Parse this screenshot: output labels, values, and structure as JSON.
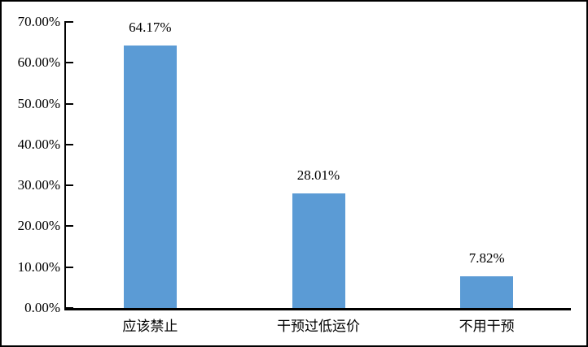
{
  "chart_data": {
    "type": "bar",
    "categories": [
      "应该禁止",
      "干预过低运价",
      "不用干预"
    ],
    "values": [
      64.17,
      28.01,
      7.82
    ],
    "data_labels": [
      "64.17%",
      "28.01%",
      "7.82%"
    ],
    "y_ticks": [
      "70.00%",
      "60.00%",
      "50.00%",
      "40.00%",
      "30.00%",
      "20.00%",
      "10.00%",
      "0.00%"
    ],
    "ylim": [
      0,
      70
    ],
    "xlabel": "",
    "ylabel": "",
    "grid": false,
    "legend": "none",
    "bar_color": "#5B9BD5",
    "axis_color": "#000000",
    "frame_border_color": "#000000",
    "background_color": "#FFFFFF",
    "text_color": "#000000"
  }
}
